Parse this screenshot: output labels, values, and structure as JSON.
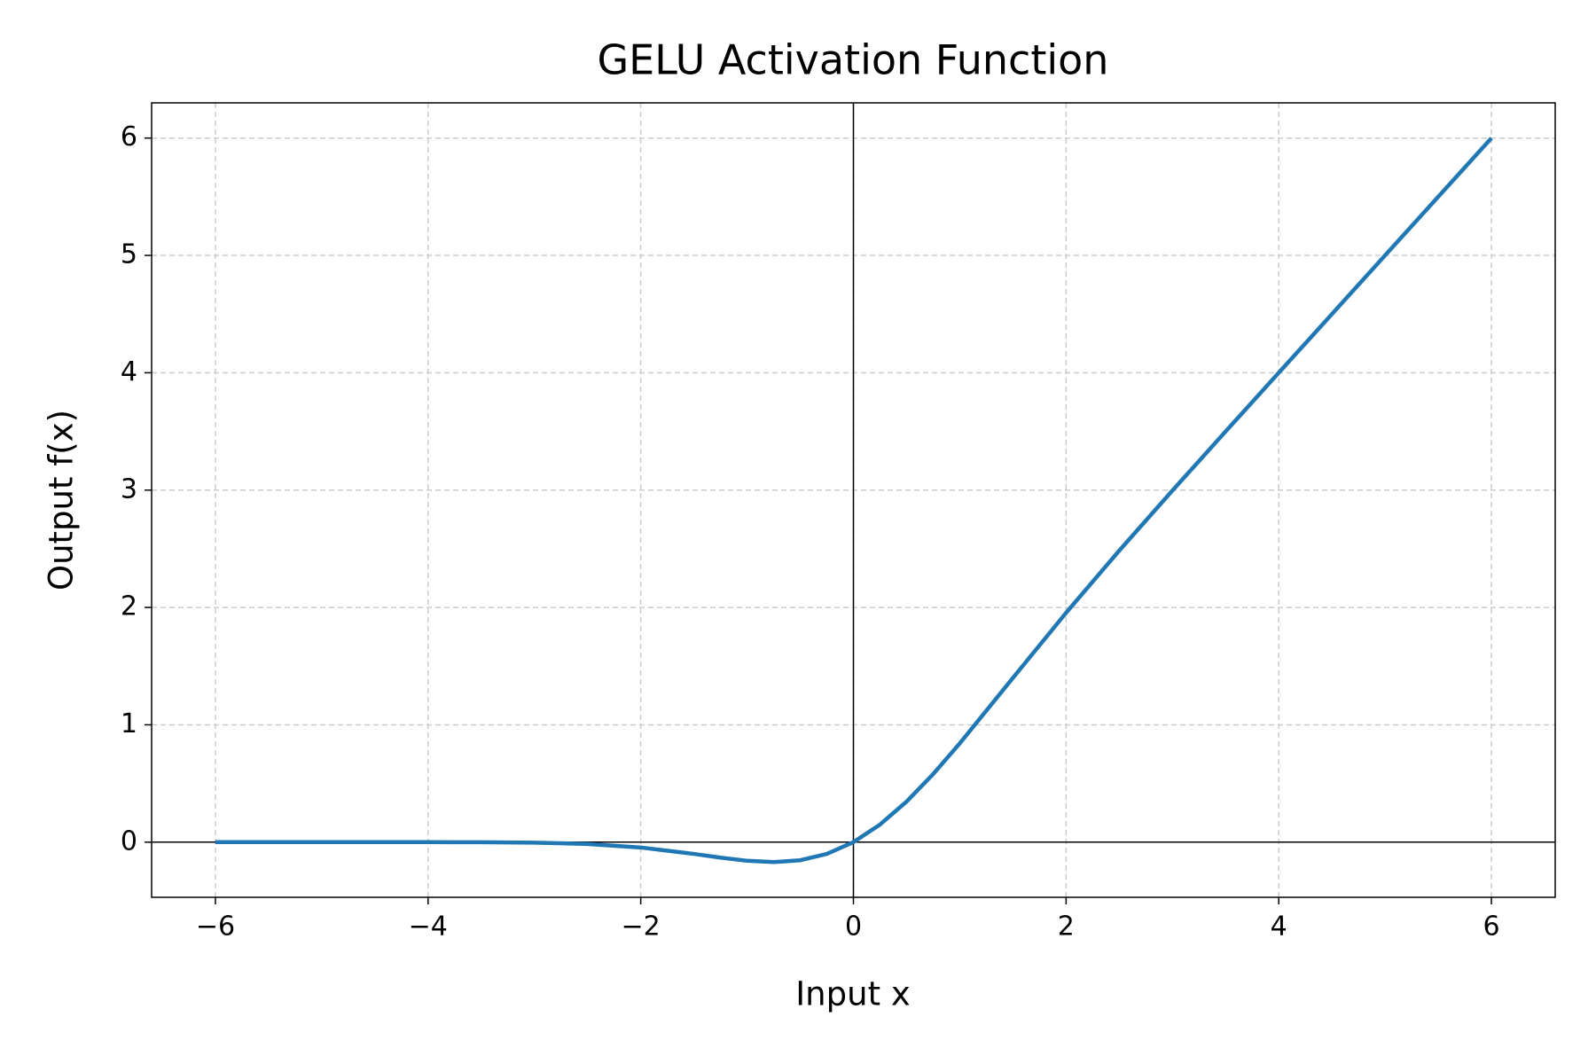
{
  "chart_data": {
    "type": "line",
    "title": "GELU Activation Function",
    "x_label": "Input x",
    "y_label": "Output f(x)",
    "x": [
      -6,
      -5.5,
      -5,
      -4.5,
      -4,
      -3.5,
      -3,
      -2.5,
      -2,
      -1.5,
      -1.25,
      -1,
      -0.75,
      -0.5,
      -0.25,
      0,
      0.25,
      0.5,
      0.75,
      1,
      1.5,
      2,
      2.5,
      3,
      3.5,
      4,
      4.5,
      5,
      5.5,
      6
    ],
    "series": [
      {
        "name": "GELU",
        "color": "#1f77b4",
        "values": [
          0,
          0,
          0,
          0,
          -0.0001,
          -0.0008,
          -0.004,
          -0.0155,
          -0.0455,
          -0.1002,
          -0.132,
          -0.1587,
          -0.17,
          -0.1543,
          -0.1003,
          0,
          0.1497,
          0.3457,
          0.58,
          0.8413,
          1.3998,
          1.9545,
          2.4845,
          2.996,
          3.4992,
          3.9999,
          4.5,
          5,
          5.5,
          6
        ]
      }
    ],
    "xlim": [
      -6.6,
      6.6
    ],
    "ylim": [
      -0.47,
      6.3
    ],
    "xticks": [
      {
        "value": -6,
        "label": "−6"
      },
      {
        "value": -4,
        "label": "−4"
      },
      {
        "value": -2,
        "label": "−2"
      },
      0,
      2,
      4,
      6
    ],
    "yticks": [
      0,
      1,
      2,
      3,
      4,
      5,
      6
    ],
    "grid": true,
    "zero_lines": true
  }
}
